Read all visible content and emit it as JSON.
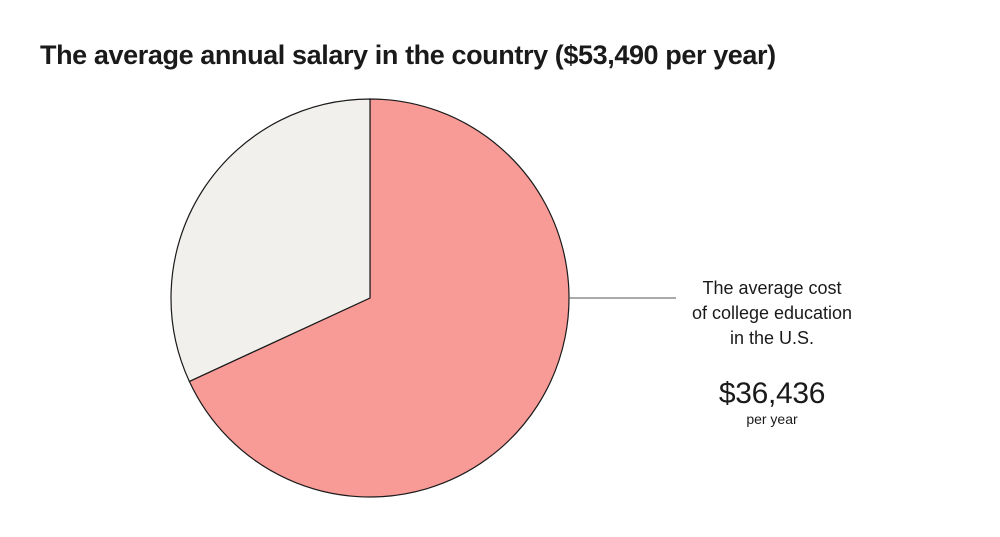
{
  "chart_data": {
    "type": "pie",
    "title": "The average annual salary in the country ($53,490 per year)",
    "total": 53490,
    "slices": [
      {
        "value": 36436,
        "color": "#f89b97",
        "callout": {
          "label": "The average cost\nof college education\nin the U.S.",
          "value": "$36,436",
          "unit": "per year"
        }
      },
      {
        "value": 17054,
        "color": "#f1f0ed"
      }
    ],
    "stroke_color": "#1a1a1a"
  }
}
